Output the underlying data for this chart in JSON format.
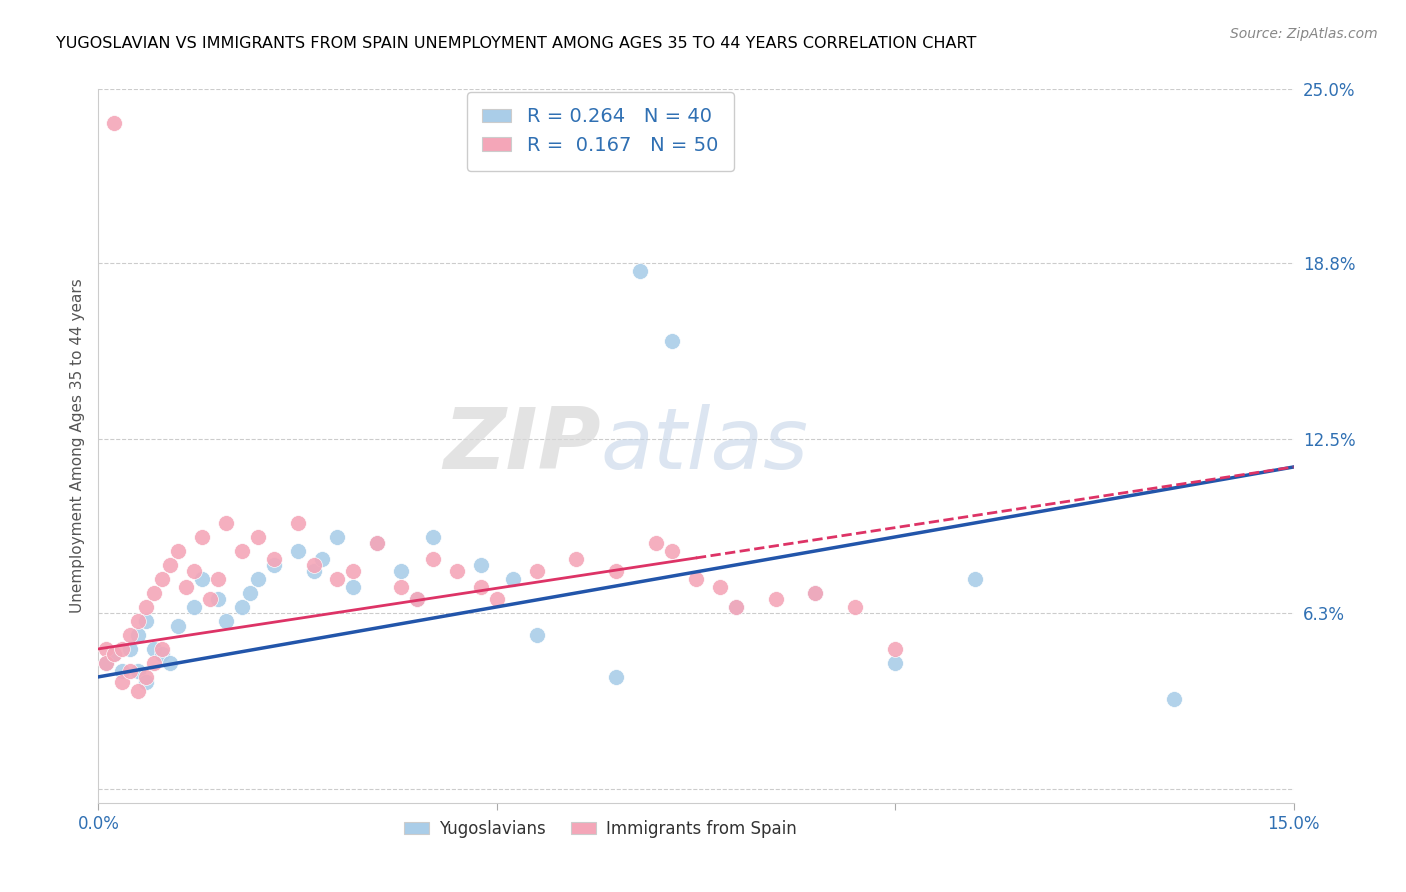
{
  "title": "YUGOSLAVIAN VS IMMIGRANTS FROM SPAIN UNEMPLOYMENT AMONG AGES 35 TO 44 YEARS CORRELATION CHART",
  "source": "Source: ZipAtlas.com",
  "ylabel": "Unemployment Among Ages 35 to 44 years",
  "xlim": [
    0.0,
    0.15
  ],
  "ylim": [
    -0.005,
    0.25
  ],
  "ytick_positions": [
    0.0,
    0.063,
    0.125,
    0.188,
    0.25
  ],
  "ytick_labels": [
    "",
    "6.3%",
    "12.5%",
    "18.8%",
    "25.0%"
  ],
  "legend_blue_R": "0.264",
  "legend_blue_N": "40",
  "legend_pink_R": "0.167",
  "legend_pink_N": "50",
  "blue_color": "#aacde8",
  "pink_color": "#f4a6b8",
  "blue_line_color": "#2255aa",
  "pink_line_color": "#dd3366",
  "watermark_text": "ZIPatlas",
  "blue_scatter_x": [
    0.001,
    0.002,
    0.003,
    0.004,
    0.005,
    0.005,
    0.006,
    0.006,
    0.007,
    0.008,
    0.009,
    0.01,
    0.012,
    0.013,
    0.015,
    0.016,
    0.018,
    0.019,
    0.02,
    0.022,
    0.025,
    0.027,
    0.028,
    0.03,
    0.032,
    0.035,
    0.038,
    0.04,
    0.042,
    0.048,
    0.052,
    0.055,
    0.065,
    0.068,
    0.072,
    0.08,
    0.09,
    0.1,
    0.11,
    0.135
  ],
  "blue_scatter_y": [
    0.045,
    0.048,
    0.042,
    0.05,
    0.055,
    0.042,
    0.06,
    0.038,
    0.05,
    0.048,
    0.045,
    0.058,
    0.065,
    0.075,
    0.068,
    0.06,
    0.065,
    0.07,
    0.075,
    0.08,
    0.085,
    0.078,
    0.082,
    0.09,
    0.072,
    0.088,
    0.078,
    0.068,
    0.09,
    0.08,
    0.075,
    0.055,
    0.04,
    0.185,
    0.16,
    0.065,
    0.07,
    0.045,
    0.075,
    0.032
  ],
  "pink_scatter_x": [
    0.001,
    0.001,
    0.002,
    0.003,
    0.003,
    0.004,
    0.004,
    0.005,
    0.005,
    0.006,
    0.006,
    0.007,
    0.007,
    0.008,
    0.008,
    0.009,
    0.01,
    0.011,
    0.012,
    0.013,
    0.014,
    0.015,
    0.016,
    0.018,
    0.02,
    0.022,
    0.025,
    0.027,
    0.03,
    0.032,
    0.035,
    0.038,
    0.04,
    0.042,
    0.045,
    0.048,
    0.05,
    0.055,
    0.06,
    0.065,
    0.07,
    0.072,
    0.075,
    0.078,
    0.08,
    0.085,
    0.09,
    0.095,
    0.1,
    0.002
  ],
  "pink_scatter_y": [
    0.05,
    0.045,
    0.048,
    0.05,
    0.038,
    0.055,
    0.042,
    0.06,
    0.035,
    0.065,
    0.04,
    0.07,
    0.045,
    0.075,
    0.05,
    0.08,
    0.085,
    0.072,
    0.078,
    0.09,
    0.068,
    0.075,
    0.095,
    0.085,
    0.09,
    0.082,
    0.095,
    0.08,
    0.075,
    0.078,
    0.088,
    0.072,
    0.068,
    0.082,
    0.078,
    0.072,
    0.068,
    0.078,
    0.082,
    0.078,
    0.088,
    0.085,
    0.075,
    0.072,
    0.065,
    0.068,
    0.07,
    0.065,
    0.05,
    0.238
  ]
}
